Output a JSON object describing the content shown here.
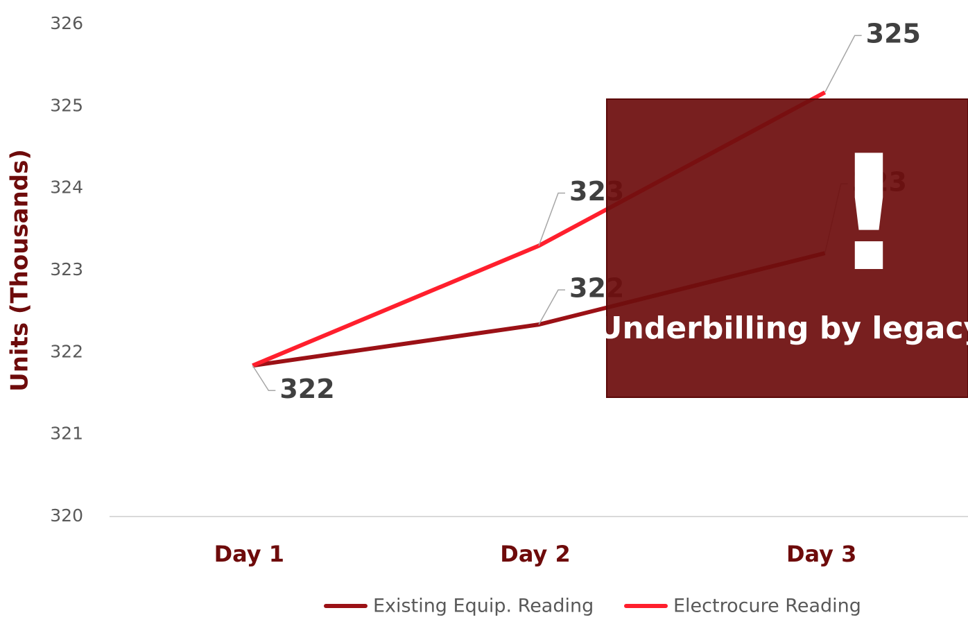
{
  "chart_data": {
    "type": "line",
    "y_label": "Units (Thousands)",
    "categories": [
      "Day 1",
      "Day 2",
      "Day 3"
    ],
    "series": [
      {
        "name": "Existing Equip. Reading",
        "color": "#9b1116",
        "values": [
          321.84,
          322.34,
          323.21
        ],
        "value_labels": [
          "322",
          "322",
          "323"
        ]
      },
      {
        "name": "Electrocure Reading",
        "color": "#ff1f2d",
        "values": [
          321.84,
          323.3,
          325.17
        ],
        "value_labels": [
          null,
          "323",
          "325"
        ]
      }
    ],
    "ylim": [
      320,
      326
    ],
    "yticks": [
      320,
      321,
      322,
      323,
      324,
      325,
      326
    ],
    "grid": false,
    "legend": "bottom",
    "annotation": {
      "mark": "!",
      "text": "Underbilling by legacy"
    }
  }
}
